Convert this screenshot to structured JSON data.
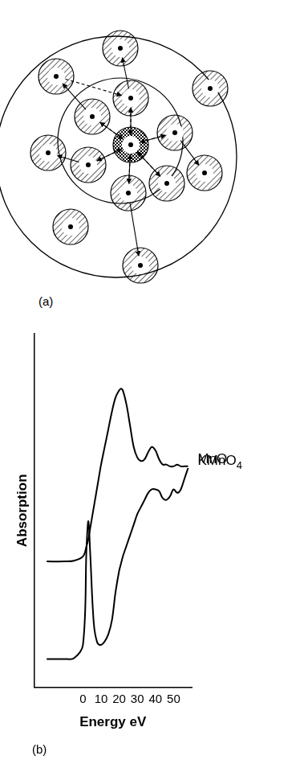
{
  "diagram": {
    "label": "(a)"
  },
  "chart_data": {
    "type": "line",
    "panel_label": "(b)",
    "x_label": "Energy eV",
    "y_label": "Absorption",
    "x": [
      -20,
      -10,
      -5,
      0,
      2,
      3,
      4,
      6,
      8,
      10,
      12,
      14,
      16,
      18,
      20,
      21,
      22,
      24,
      26,
      28,
      30,
      32,
      34,
      36,
      38,
      40,
      42,
      44,
      46,
      48,
      50,
      52,
      54,
      56,
      58
    ],
    "series": [
      {
        "name": "MnO",
        "color": "#000000",
        "values": [
          35.6,
          35.6,
          35.8,
          37,
          40,
          42,
          45,
          51,
          57,
          63,
          68,
          73,
          78,
          82,
          84,
          84.5,
          84,
          80,
          74,
          68,
          65,
          64,
          64.5,
          66.5,
          68,
          67,
          64.5,
          63,
          63,
          62.5,
          62.5,
          63,
          62.5,
          62.5,
          62.5
        ]
      },
      {
        "name": "KMnO4",
        "color": "#000000",
        "values": [
          8,
          8,
          8.2,
          12,
          40,
          47,
          38,
          18,
          12.5,
          12,
          13,
          15,
          19,
          27,
          33,
          35,
          37,
          40,
          43,
          46,
          49,
          51,
          53,
          55,
          56,
          56,
          55.5,
          53.5,
          53,
          54,
          56,
          55,
          56,
          59,
          62
        ]
      }
    ],
    "xlim": [
      -27,
      60
    ],
    "xticks": [
      0,
      10,
      20,
      30,
      40,
      50
    ],
    "ylim": [
      0,
      100
    ],
    "grid": false,
    "tick_labels": "x"
  }
}
